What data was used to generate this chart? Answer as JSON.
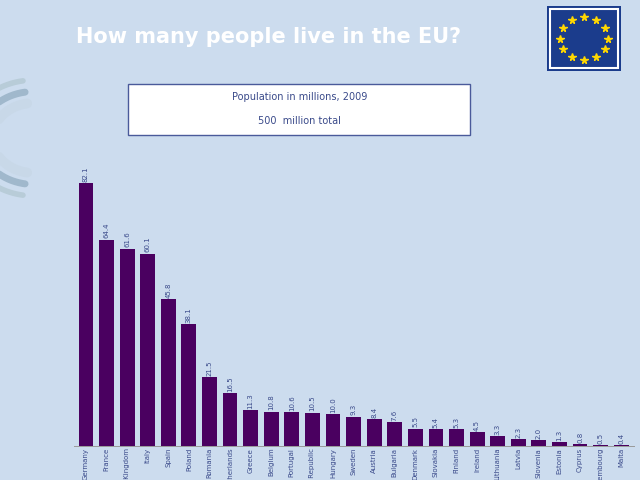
{
  "title": "How many people live in the EU?",
  "subtitle_line1": "Population in millions, 2009",
  "subtitle_line2": "500  million total",
  "categories": [
    "Germany",
    "France",
    "United Kingdom",
    "Italy",
    "Spain",
    "Poland",
    "Romania",
    "Netherlands",
    "Greece",
    "Belgium",
    "Portugal",
    "Czech Republic",
    "Hungary",
    "Sweden",
    "Austria",
    "Bulgaria",
    "Denmark",
    "Slovakia",
    "Finland",
    "Ireland",
    "Lithuania",
    "Latvia",
    "Slovenia",
    "Estonia",
    "Cyprus",
    "Luxembourg",
    "Malta"
  ],
  "values": [
    82.1,
    64.4,
    61.6,
    60.1,
    45.8,
    38.1,
    21.5,
    16.5,
    11.3,
    10.8,
    10.6,
    10.5,
    10.0,
    9.3,
    8.4,
    7.6,
    5.5,
    5.4,
    5.3,
    4.5,
    3.3,
    2.3,
    2.0,
    1.3,
    0.8,
    0.5,
    0.4
  ],
  "bar_color": "#4a0060",
  "header_bg": "#1b3c8c",
  "header_text_color": "#ffffff",
  "content_bg": "#ccdcee",
  "chart_bg": "#e8f0f8",
  "subtitle_box_edge": "#4a5a9a",
  "label_color": "#3a4a8a",
  "title_fontsize": 15,
  "bar_label_fontsize": 5.0,
  "tick_fontsize": 5.0
}
